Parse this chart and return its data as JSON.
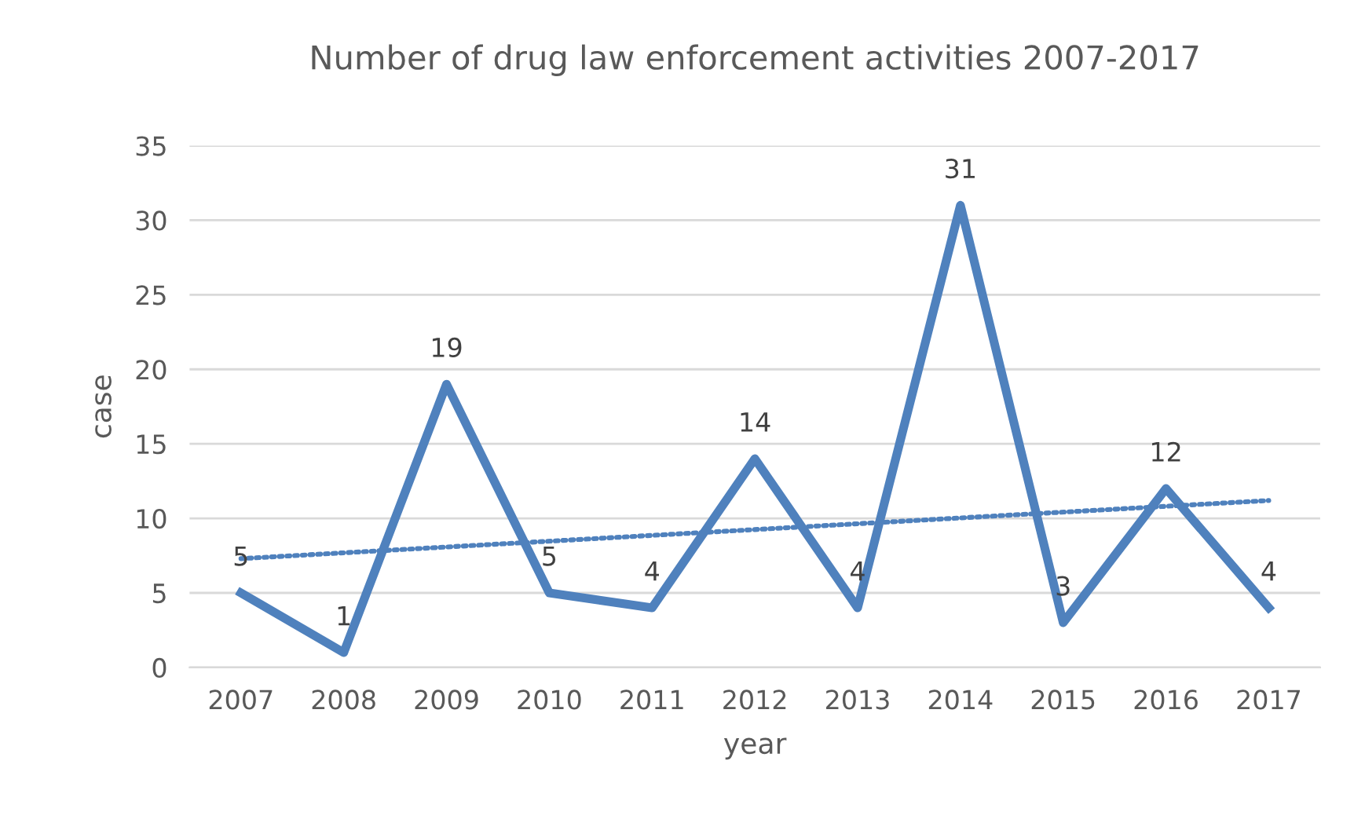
{
  "chart_data": {
    "type": "line",
    "title": "Number of drug law enforcement activities 2007-2017",
    "xlabel": "year",
    "ylabel": "case",
    "x": [
      2007,
      2008,
      2009,
      2010,
      2011,
      2012,
      2013,
      2014,
      2015,
      2016,
      2017
    ],
    "series": [
      {
        "color": "#4f81bd",
        "values": [
          5,
          1,
          19,
          5,
          4,
          14,
          4,
          31,
          3,
          12,
          4
        ],
        "line_style": "solid",
        "value_labels": [
          "5",
          "1",
          "19",
          "5",
          "4",
          "14",
          "4",
          "31",
          "3",
          "12",
          "4"
        ]
      },
      {
        "type": "line",
        "color": "#4f81bd",
        "x": [
          2007,
          2017
        ],
        "values": [
          7.3,
          11.2
        ],
        "line_style": "dotted"
      }
    ],
    "xlim": [
      2006.5,
      2017.5
    ],
    "xticks": [
      2007,
      2008,
      2009,
      2010,
      2011,
      2012,
      2013,
      2014,
      2015,
      2016,
      2017
    ],
    "ylim": [
      0,
      35
    ],
    "yticks": [
      0,
      5,
      10,
      15,
      20,
      25,
      30,
      35
    ],
    "grid": "y",
    "legend": false,
    "marker": "none"
  }
}
